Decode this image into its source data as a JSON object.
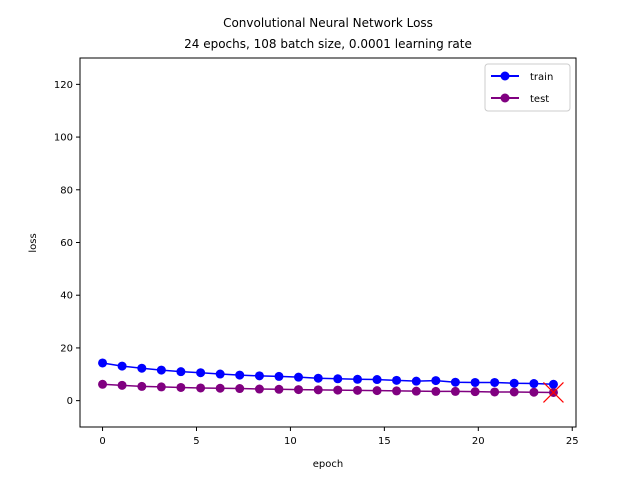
{
  "chart_data": {
    "type": "line",
    "title": "Convolutional Neural Network Loss",
    "subtitle": "24 epochs, 108 batch size, 0.0001 learning rate",
    "xlabel": "epoch",
    "ylabel": "loss",
    "xlim": [
      -1.2,
      25.2
    ],
    "ylim": [
      -10,
      130
    ],
    "xticks": [
      0,
      5,
      10,
      15,
      20,
      25
    ],
    "yticks": [
      0,
      20,
      40,
      60,
      80,
      100,
      120
    ],
    "grid": false,
    "legend_position": "top-right",
    "x": [
      0,
      1.04,
      2.09,
      3.13,
      4.17,
      5.22,
      6.26,
      7.3,
      8.35,
      9.39,
      10.43,
      11.48,
      12.52,
      13.57,
      14.61,
      15.65,
      16.7,
      17.74,
      18.78,
      19.83,
      20.87,
      21.91,
      22.96,
      24
    ],
    "series": [
      {
        "name": "train",
        "color": "#0000ff",
        "values": [
          14.3,
          13.1,
          12.3,
          11.6,
          11.0,
          10.6,
          10.1,
          9.7,
          9.4,
          9.2,
          8.9,
          8.5,
          8.3,
          8.1,
          8.0,
          7.7,
          7.4,
          7.6,
          7.0,
          6.9,
          6.9,
          6.6,
          6.5,
          6.2
        ]
      },
      {
        "name": "test",
        "color": "#800080",
        "values": [
          6.2,
          5.8,
          5.4,
          5.2,
          5.0,
          4.8,
          4.7,
          4.6,
          4.4,
          4.3,
          4.2,
          4.1,
          4.0,
          3.9,
          3.8,
          3.7,
          3.6,
          3.5,
          3.5,
          3.4,
          3.3,
          3.3,
          3.2,
          3.1
        ]
      }
    ],
    "annotations": [
      {
        "type": "x-marker",
        "x": 24,
        "y": 3.1,
        "color": "#ff0000"
      }
    ]
  }
}
